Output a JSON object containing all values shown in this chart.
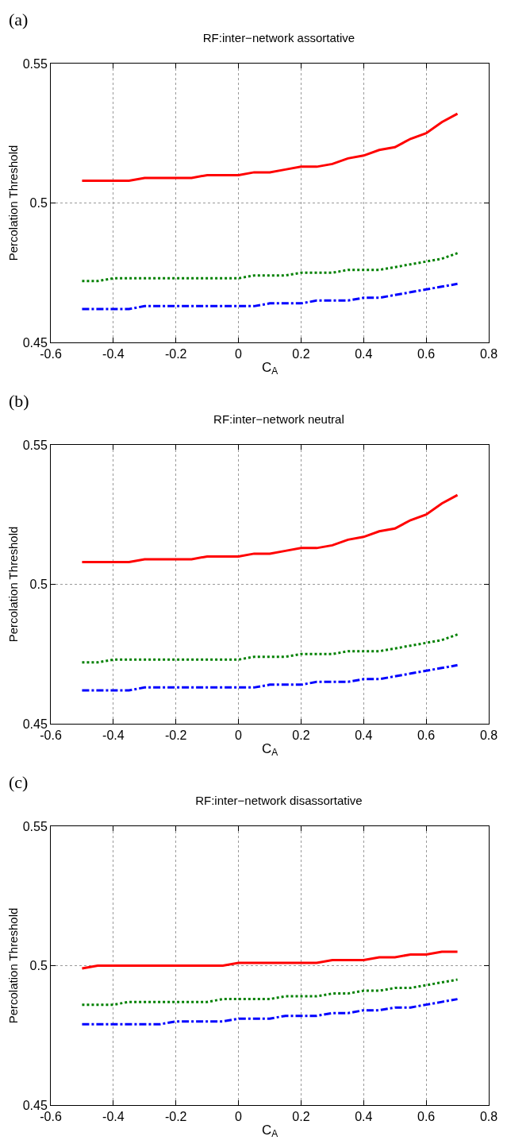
{
  "chart_data": [
    {
      "type": "line",
      "title": "RF:inter−network assortative",
      "xlabel": "C$_{A}$",
      "ylabel": "Percolation Threshold",
      "annotations": [
        "(a)"
      ],
      "x": [
        -0.5,
        -0.45,
        -0.4,
        -0.35,
        -0.3,
        -0.25,
        -0.2,
        -0.15,
        -0.1,
        -0.05,
        0,
        0.05,
        0.1,
        0.15,
        0.2,
        0.25,
        0.3,
        0.35,
        0.4,
        0.45,
        0.5,
        0.55,
        0.6,
        0.65,
        0.7
      ],
      "series": [
        {
          "color": "#ff0000",
          "line_style": "solid",
          "values": [
            0.508,
            0.508,
            0.508,
            0.508,
            0.509,
            0.509,
            0.509,
            0.509,
            0.51,
            0.51,
            0.51,
            0.511,
            0.511,
            0.512,
            0.513,
            0.513,
            0.514,
            0.516,
            0.517,
            0.519,
            0.52,
            0.523,
            0.525,
            0.529,
            0.532
          ]
        },
        {
          "color": "#008000",
          "line_style": "dotted",
          "values": [
            0.472,
            0.472,
            0.473,
            0.473,
            0.473,
            0.473,
            0.473,
            0.473,
            0.473,
            0.473,
            0.473,
            0.474,
            0.474,
            0.474,
            0.475,
            0.475,
            0.475,
            0.476,
            0.476,
            0.476,
            0.477,
            0.478,
            0.479,
            0.48,
            0.482
          ]
        },
        {
          "color": "#0000ff",
          "line_style": "dashed",
          "values": [
            0.462,
            0.462,
            0.462,
            0.462,
            0.463,
            0.463,
            0.463,
            0.463,
            0.463,
            0.463,
            0.463,
            0.463,
            0.464,
            0.464,
            0.464,
            0.465,
            0.465,
            0.465,
            0.466,
            0.466,
            0.467,
            0.468,
            0.469,
            0.47,
            0.471
          ]
        }
      ],
      "xlim": [
        -0.6,
        0.8
      ],
      "xticks": [
        -0.6,
        -0.4,
        -0.2,
        0,
        0.2,
        0.4,
        0.6,
        0.8
      ],
      "ylim": [
        0.45,
        0.55
      ],
      "yticks": [
        0.45,
        0.5,
        0.55
      ],
      "grid": true
    },
    {
      "type": "line",
      "title": "RF:inter−network neutral",
      "xlabel": "C$_{A}$",
      "ylabel": "Percolation Threshold",
      "annotations": [
        "(b)"
      ],
      "x": [
        -0.5,
        -0.45,
        -0.4,
        -0.35,
        -0.3,
        -0.25,
        -0.2,
        -0.15,
        -0.1,
        -0.05,
        0,
        0.05,
        0.1,
        0.15,
        0.2,
        0.25,
        0.3,
        0.35,
        0.4,
        0.45,
        0.5,
        0.55,
        0.6,
        0.65,
        0.7
      ],
      "series": [
        {
          "color": "#ff0000",
          "line_style": "solid",
          "values": [
            0.508,
            0.508,
            0.508,
            0.508,
            0.509,
            0.509,
            0.509,
            0.509,
            0.51,
            0.51,
            0.51,
            0.511,
            0.511,
            0.512,
            0.513,
            0.513,
            0.514,
            0.516,
            0.517,
            0.519,
            0.52,
            0.523,
            0.525,
            0.529,
            0.532
          ]
        },
        {
          "color": "#008000",
          "line_style": "dotted",
          "values": [
            0.472,
            0.472,
            0.473,
            0.473,
            0.473,
            0.473,
            0.473,
            0.473,
            0.473,
            0.473,
            0.473,
            0.474,
            0.474,
            0.474,
            0.475,
            0.475,
            0.475,
            0.476,
            0.476,
            0.476,
            0.477,
            0.478,
            0.479,
            0.48,
            0.482
          ]
        },
        {
          "color": "#0000ff",
          "line_style": "dashed",
          "values": [
            0.462,
            0.462,
            0.462,
            0.462,
            0.463,
            0.463,
            0.463,
            0.463,
            0.463,
            0.463,
            0.463,
            0.463,
            0.464,
            0.464,
            0.464,
            0.465,
            0.465,
            0.465,
            0.466,
            0.466,
            0.467,
            0.468,
            0.469,
            0.47,
            0.471
          ]
        }
      ],
      "xlim": [
        -0.6,
        0.8
      ],
      "xticks": [
        -0.6,
        -0.4,
        -0.2,
        0,
        0.2,
        0.4,
        0.6,
        0.8
      ],
      "ylim": [
        0.45,
        0.55
      ],
      "yticks": [
        0.45,
        0.5,
        0.55
      ],
      "grid": true
    },
    {
      "type": "line",
      "title": "RF:inter−network disassortative",
      "xlabel": "C$_{A}$",
      "ylabel": "Percolation Threshold",
      "annotations": [
        "(c)"
      ],
      "x": [
        -0.5,
        -0.45,
        -0.4,
        -0.35,
        -0.3,
        -0.25,
        -0.2,
        -0.15,
        -0.1,
        -0.05,
        0,
        0.05,
        0.1,
        0.15,
        0.2,
        0.25,
        0.3,
        0.35,
        0.4,
        0.45,
        0.5,
        0.55,
        0.6,
        0.65,
        0.7
      ],
      "series": [
        {
          "color": "#ff0000",
          "line_style": "solid",
          "values": [
            0.499,
            0.5,
            0.5,
            0.5,
            0.5,
            0.5,
            0.5,
            0.5,
            0.5,
            0.5,
            0.501,
            0.501,
            0.501,
            0.501,
            0.501,
            0.501,
            0.502,
            0.502,
            0.502,
            0.503,
            0.503,
            0.504,
            0.504,
            0.505,
            0.505
          ]
        },
        {
          "color": "#008000",
          "line_style": "dotted",
          "values": [
            0.486,
            0.486,
            0.486,
            0.487,
            0.487,
            0.487,
            0.487,
            0.487,
            0.487,
            0.488,
            0.488,
            0.488,
            0.488,
            0.489,
            0.489,
            0.489,
            0.49,
            0.49,
            0.491,
            0.491,
            0.492,
            0.492,
            0.493,
            0.494,
            0.495
          ]
        },
        {
          "color": "#0000ff",
          "line_style": "dashed",
          "values": [
            0.479,
            0.479,
            0.479,
            0.479,
            0.479,
            0.479,
            0.48,
            0.48,
            0.48,
            0.48,
            0.481,
            0.481,
            0.481,
            0.482,
            0.482,
            0.482,
            0.483,
            0.483,
            0.484,
            0.484,
            0.485,
            0.485,
            0.486,
            0.487,
            0.488
          ]
        }
      ],
      "xlim": [
        -0.6,
        0.8
      ],
      "xticks": [
        -0.6,
        -0.4,
        -0.2,
        0,
        0.2,
        0.4,
        0.6,
        0.8
      ],
      "ylim": [
        0.45,
        0.55
      ],
      "yticks": [
        0.45,
        0.5,
        0.55
      ],
      "grid": true
    }
  ]
}
